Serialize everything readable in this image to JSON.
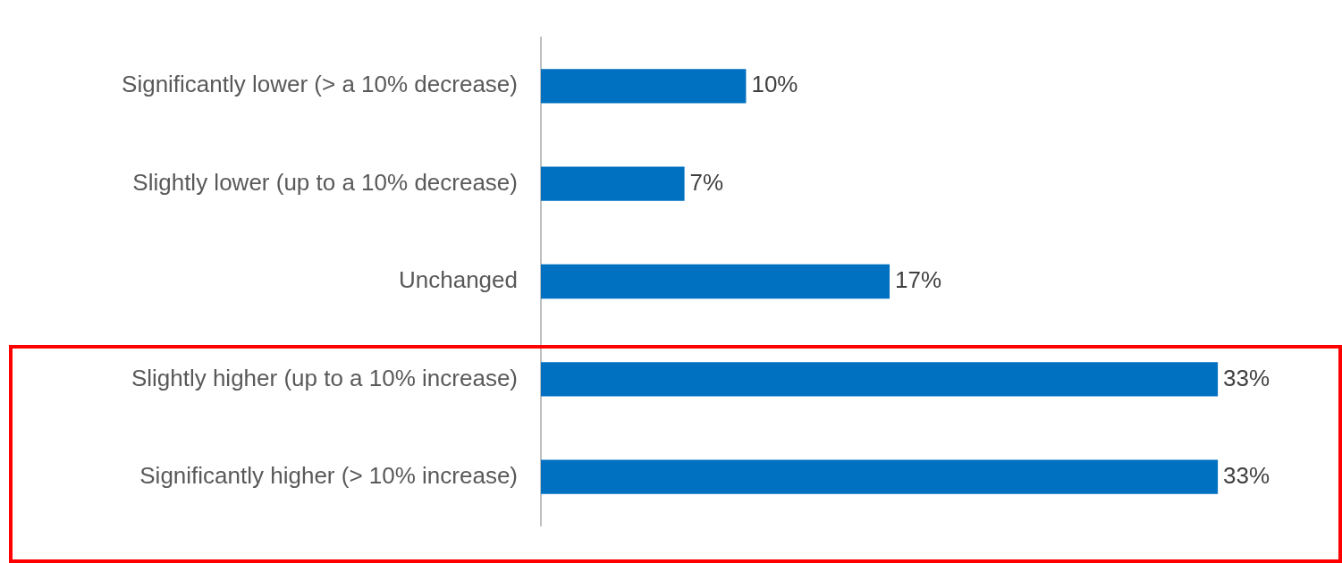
{
  "chart_data": {
    "type": "bar",
    "orientation": "horizontal",
    "categories": [
      "Significantly lower (> a 10% decrease)",
      "Slightly lower (up to a 10% decrease)",
      "Unchanged",
      "Slightly higher (up to a 10% increase)",
      "Significantly higher (> 10% increase)"
    ],
    "values": [
      10,
      7,
      17,
      33,
      33
    ],
    "value_labels": [
      "10%",
      "7%",
      "17%",
      "33%",
      "33%"
    ],
    "color": "#0070c0",
    "legend": false,
    "tick_labels": "y"
  }
}
